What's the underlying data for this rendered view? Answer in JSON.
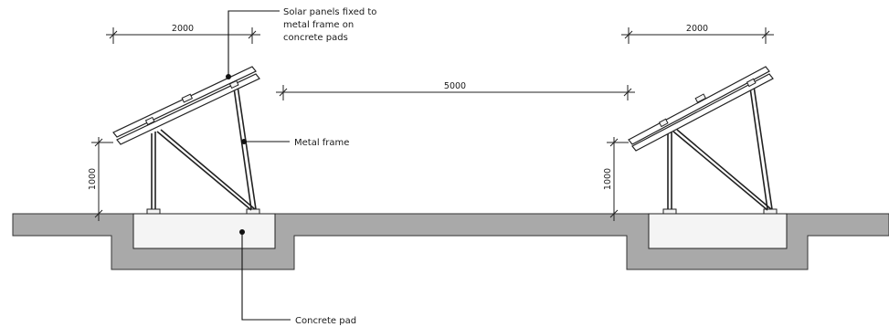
{
  "labels": {
    "panels_line1": "Solar panels fixed to",
    "panels_line2": "metal frame on",
    "panels_line3": "concrete pads",
    "frame": "Metal frame",
    "pad": "Concrete pad"
  },
  "dimensions": {
    "panel_width_left": "2000",
    "panel_width_right": "2000",
    "row_spacing": "5000",
    "height_left": "1000",
    "height_right": "1000"
  },
  "colors": {
    "ground": "#a9a9a9",
    "pad": "#f4f4f4",
    "line": "#222222"
  }
}
